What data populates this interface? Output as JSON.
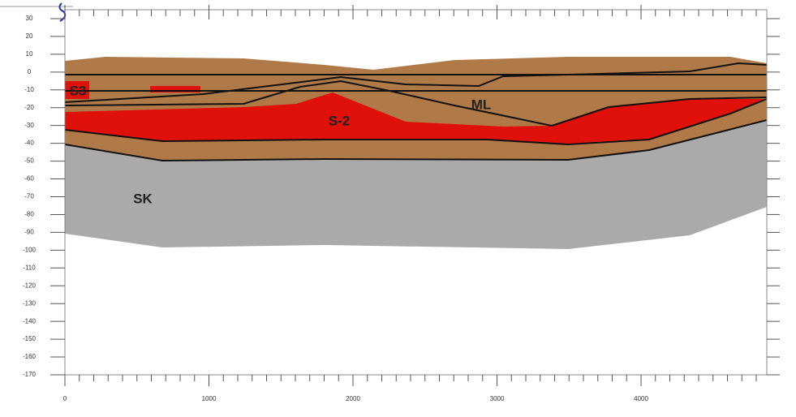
{
  "chart_data": {
    "type": "cross-section",
    "xlim": [
      0,
      4873
    ],
    "ylim": [
      -170,
      35
    ],
    "xticks": [
      0,
      1000,
      2000,
      3000,
      4000
    ],
    "yticks": [
      30,
      20,
      10,
      0,
      -10,
      -20,
      -30,
      -40,
      -50,
      -60,
      -70,
      -80,
      -90,
      -100,
      -110,
      -120,
      -130,
      -140,
      -150,
      -160,
      -170
    ],
    "layer_labels": [
      "S3",
      "ML",
      "S-2",
      "SK"
    ]
  }
}
